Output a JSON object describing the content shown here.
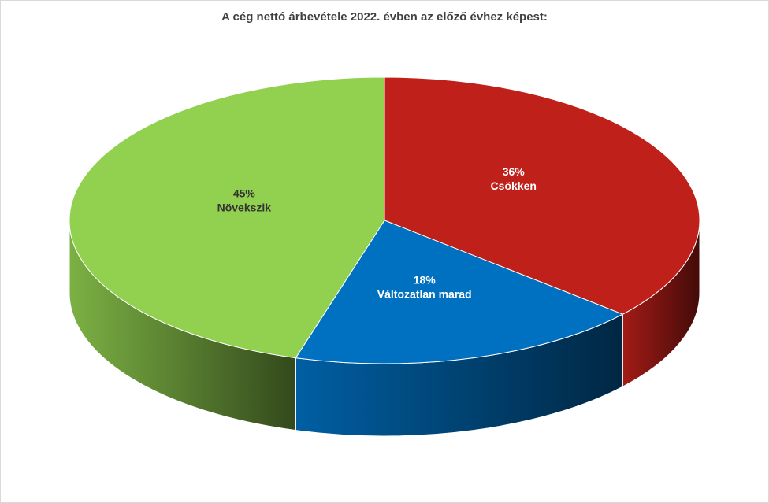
{
  "chart_data": {
    "type": "pie3d",
    "title": "A cég nettó árbevétele 2022. évben az előző évhez képest:",
    "categories": [
      "Csökken",
      "Változatlan marad",
      "Növekszik"
    ],
    "values": [
      36,
      18,
      45
    ],
    "value_labels": [
      "36%",
      "18%",
      "45%"
    ],
    "colors": [
      "#c0201a",
      "#0070c0",
      "#92d050"
    ],
    "label_colors": [
      "#ffffff",
      "#ffffff",
      "#333333"
    ]
  }
}
